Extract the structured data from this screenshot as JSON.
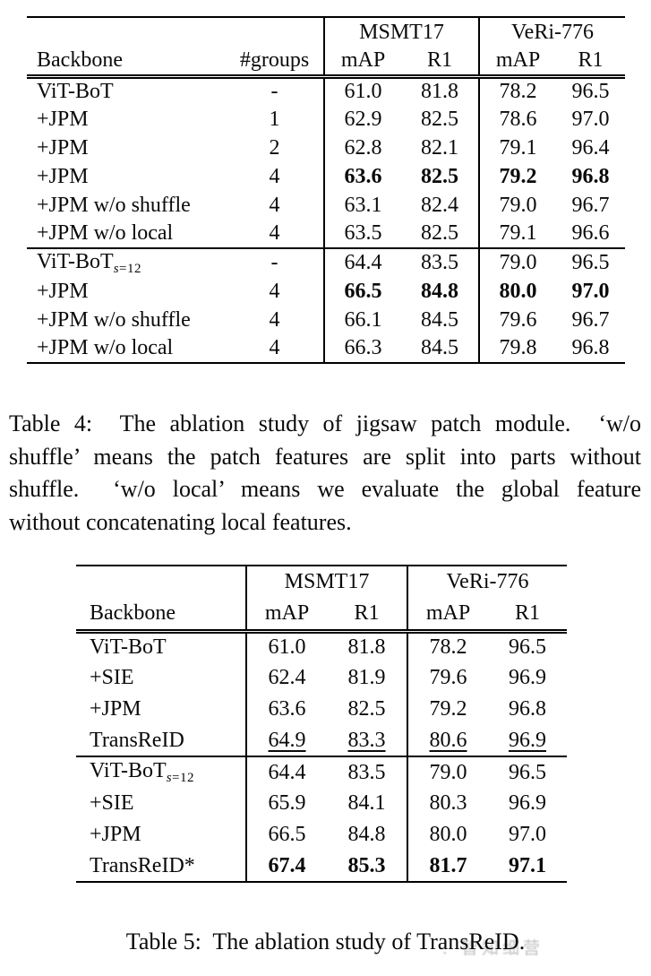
{
  "table4": {
    "groups_header": [
      "MSMT17",
      "VeRi-776"
    ],
    "columns": [
      "Backbone",
      "#groups",
      "mAP",
      "R1",
      "mAP",
      "R1"
    ],
    "sections": [
      {
        "rows": [
          {
            "name": "ViT-BoT",
            "sub": "",
            "groups": "-",
            "values": [
              "61.0",
              "81.8",
              "78.2",
              "96.5"
            ],
            "style": "normal"
          },
          {
            "name": "+JPM",
            "sub": "",
            "groups": "1",
            "values": [
              "62.9",
              "82.5",
              "78.6",
              "97.0"
            ],
            "style": "normal"
          },
          {
            "name": "+JPM",
            "sub": "",
            "groups": "2",
            "values": [
              "62.8",
              "82.1",
              "79.1",
              "96.4"
            ],
            "style": "normal"
          },
          {
            "name": "+JPM",
            "sub": "",
            "groups": "4",
            "values": [
              "63.6",
              "82.5",
              "79.2",
              "96.8"
            ],
            "style": "bold"
          },
          {
            "name": "+JPM w/o shuffle",
            "sub": "",
            "groups": "4",
            "values": [
              "63.1",
              "82.4",
              "79.0",
              "96.7"
            ],
            "style": "normal"
          },
          {
            "name": "+JPM w/o local",
            "sub": "",
            "groups": "4",
            "values": [
              "63.5",
              "82.5",
              "79.1",
              "96.6"
            ],
            "style": "normal"
          }
        ]
      },
      {
        "rows": [
          {
            "name": "ViT-BoT",
            "sub": "s=12",
            "groups": "-",
            "values": [
              "64.4",
              "83.5",
              "79.0",
              "96.5"
            ],
            "style": "normal"
          },
          {
            "name": "+JPM",
            "sub": "",
            "groups": "4",
            "values": [
              "66.5",
              "84.8",
              "80.0",
              "97.0"
            ],
            "style": "bold"
          },
          {
            "name": "+JPM w/o shuffle",
            "sub": "",
            "groups": "4",
            "values": [
              "66.1",
              "84.5",
              "79.6",
              "96.7"
            ],
            "style": "normal"
          },
          {
            "name": "+JPM w/o local",
            "sub": "",
            "groups": "4",
            "values": [
              "66.3",
              "84.5",
              "79.8",
              "96.8"
            ],
            "style": "normal"
          }
        ]
      }
    ]
  },
  "caption4": {
    "lines": [
      "Table 4:  The ablation study of jigsaw patch module.  ‘w/o",
      "shuffle’ means the patch features are split into parts without",
      "shuffle.  ‘w/o local’ means we evaluate the global feature",
      "without concatenating local features."
    ]
  },
  "table5": {
    "groups_header": [
      "MSMT17",
      "VeRi-776"
    ],
    "columns": [
      "Backbone",
      "mAP",
      "R1",
      "mAP",
      "R1"
    ],
    "sections": [
      {
        "rows": [
          {
            "name": "ViT-BoT",
            "sub": "",
            "values": [
              "61.0",
              "81.8",
              "78.2",
              "96.5"
            ],
            "style": "normal"
          },
          {
            "name": "+SIE",
            "sub": "",
            "values": [
              "62.4",
              "81.9",
              "79.6",
              "96.9"
            ],
            "style": "normal"
          },
          {
            "name": "+JPM",
            "sub": "",
            "values": [
              "63.6",
              "82.5",
              "79.2",
              "96.8"
            ],
            "style": "normal"
          },
          {
            "name": "TransReID",
            "sub": "",
            "values": [
              "64.9",
              "83.3",
              "80.6",
              "96.9"
            ],
            "style": "underline"
          }
        ]
      },
      {
        "rows": [
          {
            "name": "ViT-BoT",
            "sub": "s=12",
            "values": [
              "64.4",
              "83.5",
              "79.0",
              "96.5"
            ],
            "style": "normal"
          },
          {
            "name": "+SIE",
            "sub": "",
            "values": [
              "65.9",
              "84.1",
              "80.3",
              "96.9"
            ],
            "style": "normal"
          },
          {
            "name": "+JPM",
            "sub": "",
            "values": [
              "66.5",
              "84.8",
              "80.0",
              "97.0"
            ],
            "style": "normal"
          },
          {
            "name": "TransReID*",
            "sub": "",
            "values": [
              "67.4",
              "85.3",
              "81.7",
              "97.1"
            ],
            "style": "bold"
          }
        ]
      }
    ]
  },
  "caption5": {
    "text": "Table 5:  The ablation study of TransReID."
  },
  "watermark": {
    "text": "！智知细营",
    "color": "#b4b4b4"
  }
}
